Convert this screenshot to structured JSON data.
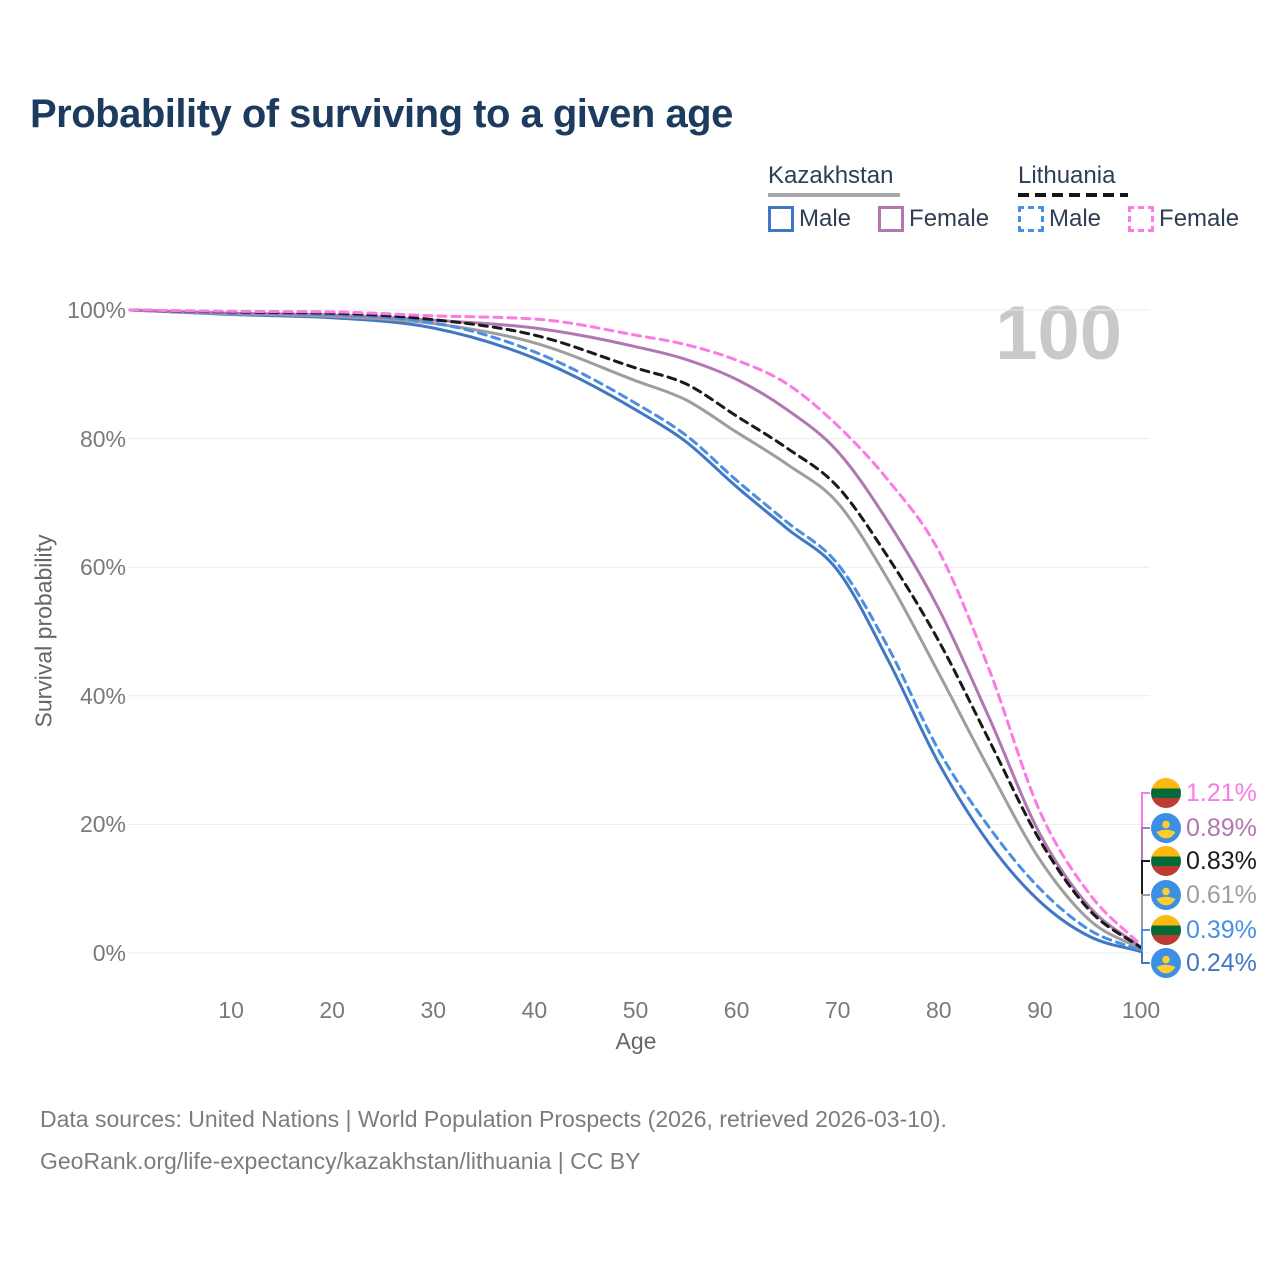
{
  "title": "Probability of surviving to a given age",
  "watermark": "100",
  "legend": {
    "groups": [
      {
        "name": "Kazakhstan",
        "line_style": "solid",
        "line_color": "#a8a8a8",
        "items": [
          {
            "label": "Male",
            "color": "#4277c4"
          },
          {
            "label": "Female",
            "color": "#b077b0"
          }
        ]
      },
      {
        "name": "Lithuania",
        "line_style": "dashed",
        "line_color": "#151515",
        "items": [
          {
            "label": "Male",
            "color": "#4a90e2"
          },
          {
            "label": "Female",
            "color": "#fb7ae4"
          }
        ]
      }
    ]
  },
  "axes": {
    "y_title": "Survival probability",
    "x_title": "Age",
    "y_ticks": [
      "0%",
      "20%",
      "40%",
      "60%",
      "80%",
      "100%"
    ],
    "x_ticks": [
      "10",
      "20",
      "30",
      "40",
      "50",
      "60",
      "70",
      "80",
      "90",
      "100"
    ]
  },
  "chart_data": {
    "type": "line",
    "title": "Probability of surviving to a given age",
    "xlabel": "Age",
    "ylabel": "Survival probability",
    "xlim": [
      0,
      100
    ],
    "ylim": [
      0,
      100
    ],
    "grid": "horizontal",
    "legend_position": "top-right",
    "x": [
      0,
      10,
      20,
      30,
      40,
      50,
      55,
      60,
      65,
      70,
      75,
      80,
      85,
      90,
      95,
      100
    ],
    "series": [
      {
        "id": "kz-male",
        "country": "Kazakhstan",
        "group": "male",
        "style": "solid",
        "color": "#4277c4",
        "flag": "kazakhstan",
        "end_label": "0.24%",
        "values": [
          100,
          99.3,
          98.8,
          97.2,
          92.5,
          84.5,
          79.5,
          72.5,
          66.0,
          59.5,
          45.5,
          29.5,
          17.0,
          8.0,
          2.5,
          0.24
        ]
      },
      {
        "id": "kz-both",
        "country": "Kazakhstan",
        "group": "all",
        "style": "solid",
        "color": "#9e9e9e",
        "flag": "kazakhstan",
        "end_label": "0.61%",
        "values": [
          100,
          99.4,
          99.0,
          97.9,
          94.9,
          89.0,
          86.0,
          81.0,
          76.0,
          70.0,
          58.0,
          43.5,
          28.5,
          14.5,
          5.0,
          0.61
        ]
      },
      {
        "id": "kz-female",
        "country": "Kazakhstan",
        "group": "female",
        "style": "solid",
        "color": "#b077b0",
        "flag": "kazakhstan",
        "end_label": "0.89%",
        "values": [
          100,
          99.5,
          99.2,
          98.4,
          97.2,
          94.3,
          92.3,
          89.2,
          84.5,
          78.0,
          67.0,
          53.5,
          36.5,
          18.5,
          7.0,
          0.89
        ]
      },
      {
        "id": "lt-male",
        "country": "Lithuania",
        "group": "male",
        "style": "dashed",
        "color": "#4a90e2",
        "flag": "lithuania",
        "end_label": "0.39%",
        "values": [
          100,
          99.6,
          99.3,
          98.0,
          93.5,
          85.5,
          80.5,
          73.5,
          67.0,
          60.5,
          47.5,
          31.5,
          19.5,
          10.0,
          3.5,
          0.39
        ]
      },
      {
        "id": "lt-both",
        "country": "Lithuania",
        "group": "all",
        "style": "dashed",
        "color": "#1a1a1a",
        "flag": "lithuania",
        "end_label": "0.83%",
        "values": [
          100,
          99.7,
          99.5,
          98.5,
          96.1,
          91.0,
          88.5,
          83.5,
          78.5,
          72.5,
          61.5,
          48.5,
          33.0,
          17.5,
          6.5,
          0.83
        ]
      },
      {
        "id": "lt-female",
        "country": "Lithuania",
        "group": "female",
        "style": "dashed",
        "color": "#fb7ae4",
        "flag": "lithuania",
        "end_label": "1.21%",
        "values": [
          100,
          99.8,
          99.7,
          99.1,
          98.6,
          96.1,
          94.6,
          92.2,
          88.5,
          82.0,
          73.5,
          62.5,
          44.0,
          22.0,
          9.0,
          1.21
        ]
      }
    ]
  },
  "footer": {
    "line1": "Data sources: United Nations | World Population Prospects (2026, retrieved 2026-03-10).",
    "line2": "GeoRank.org/life-expectancy/kazakhstan/lithuania | CC BY"
  }
}
